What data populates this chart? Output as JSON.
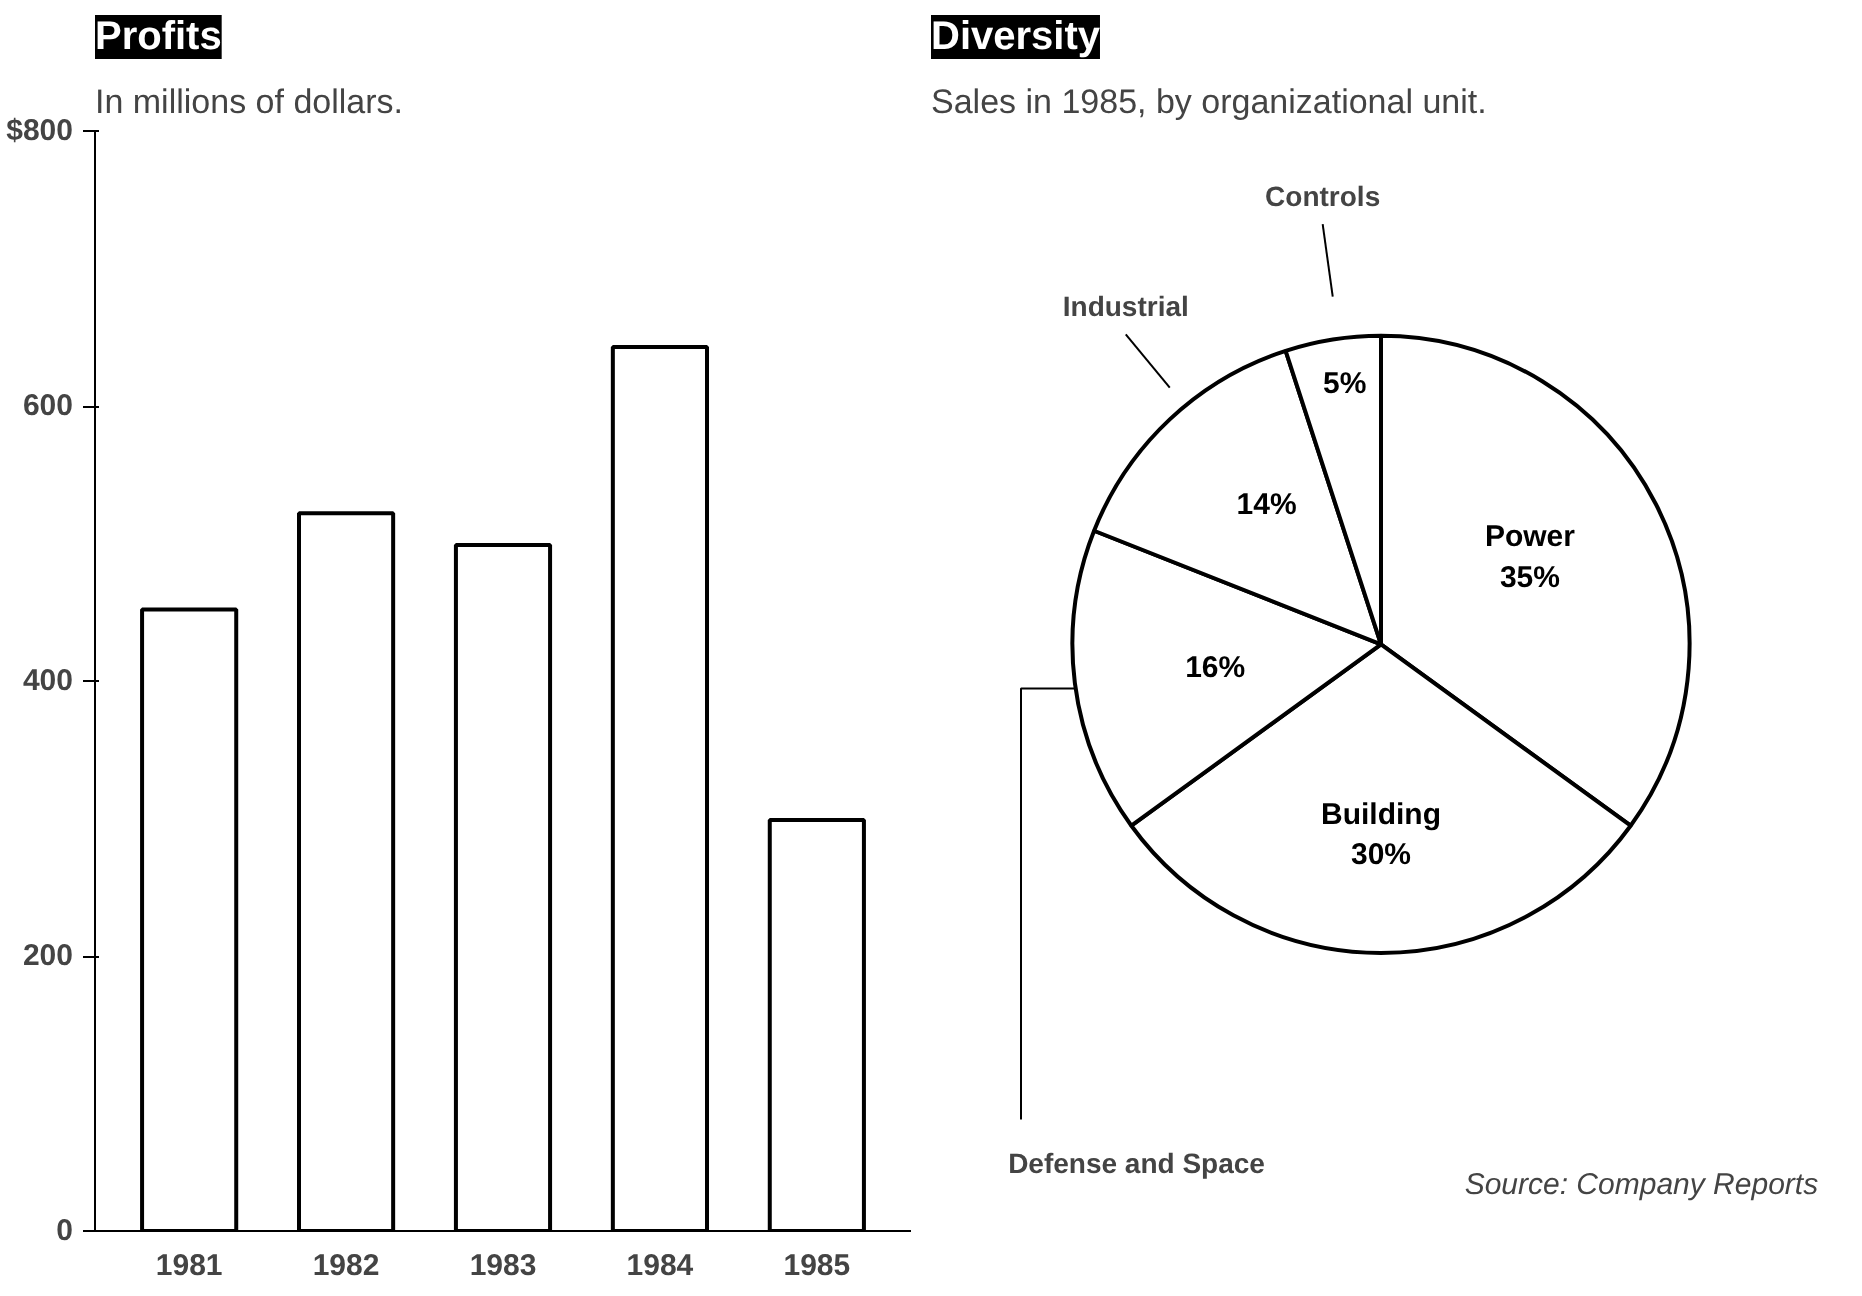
{
  "chart_data": [
    {
      "type": "bar",
      "title": "Profits",
      "subtitle": "In millions of dollars.",
      "categories": [
        "1981",
        "1982",
        "1983",
        "1984",
        "1985"
      ],
      "values": [
        452,
        522,
        499,
        643,
        299
      ],
      "color": "#ffffff",
      "ylim": [
        0,
        800
      ],
      "yticks": [
        0,
        200,
        400,
        600,
        {
          "value": 800,
          "label": "$800"
        }
      ],
      "grid": false
    },
    {
      "type": "pie",
      "title": "Diversity",
      "subtitle": "Sales in 1985, by organizational unit.",
      "categories": [
        "Power",
        "Building",
        "Defense and Space",
        "Industrial",
        "Controls"
      ],
      "values": [
        35,
        30,
        16,
        14,
        5
      ],
      "value_labels": [
        "35%",
        "30%",
        "16%",
        "14%",
        "5%"
      ],
      "colors": [
        "#ffffff",
        "#ffffff",
        "#ffffff",
        "#ffffff",
        "#ffffff"
      ],
      "annotations": [
        "Source: Company Reports"
      ]
    }
  ]
}
